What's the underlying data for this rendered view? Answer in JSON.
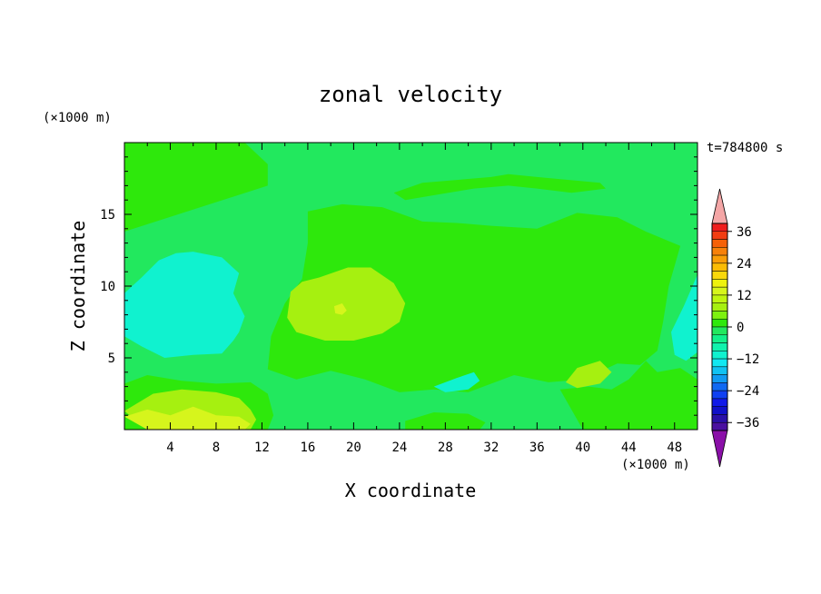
{
  "chart_data": {
    "type": "heatmap",
    "title": "zonal velocity",
    "xlabel": "X coordinate",
    "ylabel": "Z coordinate",
    "x_unit": "(×1000 m)",
    "z_unit": "(×1000 m)",
    "time_label": "t=784800 s",
    "xlim": [
      0,
      50
    ],
    "ylim": [
      0,
      20
    ],
    "x_ticks": [
      4,
      8,
      12,
      16,
      20,
      24,
      28,
      32,
      36,
      40,
      44,
      48
    ],
    "y_ticks": [
      5,
      10,
      15
    ],
    "colorbar": {
      "labels": [
        36,
        24,
        12,
        0,
        -12,
        -24,
        -36
      ],
      "levels": [
        {
          "min": 39,
          "color": "#f4a6a6"
        },
        {
          "min": 36,
          "max": 39,
          "color": "#ef1c1c"
        },
        {
          "min": 33,
          "max": 36,
          "color": "#f23d12"
        },
        {
          "min": 30,
          "max": 33,
          "color": "#f56108"
        },
        {
          "min": 27,
          "max": 30,
          "color": "#f7810a"
        },
        {
          "min": 24,
          "max": 27,
          "color": "#fa9e08"
        },
        {
          "min": 21,
          "max": 24,
          "color": "#fbbc05"
        },
        {
          "min": 18,
          "max": 21,
          "color": "#fad80a"
        },
        {
          "min": 15,
          "max": 18,
          "color": "#eef20e"
        },
        {
          "min": 12,
          "max": 15,
          "color": "#d6f51c"
        },
        {
          "min": 9,
          "max": 12,
          "color": "#bff510"
        },
        {
          "min": 6,
          "max": 9,
          "color": "#a6f010"
        },
        {
          "min": 3,
          "max": 6,
          "color": "#7df210"
        },
        {
          "min": 0,
          "max": 3,
          "color": "#2ee80c"
        },
        {
          "min": -3,
          "max": 0,
          "color": "#22e85e"
        },
        {
          "min": -6,
          "max": -3,
          "color": "#12f08a"
        },
        {
          "min": -9,
          "max": -6,
          "color": "#10f2ad"
        },
        {
          "min": -12,
          "max": -9,
          "color": "#10f2cf"
        },
        {
          "min": -15,
          "max": -12,
          "color": "#10e8f2"
        },
        {
          "min": -18,
          "max": -15,
          "color": "#10c2f2"
        },
        {
          "min": -21,
          "max": -18,
          "color": "#109af2"
        },
        {
          "min": -24,
          "max": -21,
          "color": "#1069f2"
        },
        {
          "min": -27,
          "max": -24,
          "color": "#1040f2"
        },
        {
          "min": -30,
          "max": -27,
          "color": "#1019e8"
        },
        {
          "min": -33,
          "max": -30,
          "color": "#1010c8"
        },
        {
          "min": -36,
          "max": -33,
          "color": "#2a10a8"
        },
        {
          "min": -39,
          "max": -36,
          "color": "#4a10a0"
        },
        {
          "max": -39,
          "color": "#8a10a8"
        }
      ]
    },
    "regions": [
      {
        "name": "positive 0-3 upper left",
        "value": 1.5,
        "x": [
          0,
          0,
          12.5,
          12.5,
          10.5,
          7,
          3.5,
          0
        ],
        "y": [
          20,
          13.8,
          17,
          18.5,
          20,
          20,
          20,
          20
        ]
      },
      {
        "name": "positive 0-3 main body",
        "value": 1.5,
        "x": [
          16,
          19,
          22.5,
          26,
          29,
          32,
          36,
          39.5,
          43,
          45.5,
          48.5,
          47.5,
          47,
          46.5,
          45,
          43,
          40,
          37,
          34,
          30,
          27,
          24,
          21,
          18,
          15,
          12.5,
          12.8,
          14,
          15.5,
          16,
          16
        ],
        "y": [
          15.2,
          15.7,
          15.5,
          14.5,
          14.4,
          14.2,
          14.0,
          15.1,
          14.8,
          13.8,
          12.8,
          10,
          7.5,
          5.5,
          4.5,
          4.6,
          3.5,
          3.3,
          3.8,
          2.6,
          2.8,
          2.6,
          3.5,
          4.1,
          3.5,
          4.2,
          6.5,
          8.8,
          10.5,
          13,
          15.2
        ]
      },
      {
        "name": "positive 0-3 upper band",
        "value": 1.5,
        "x": [
          23.5,
          26,
          29,
          32,
          33.5,
          36,
          41.5,
          42,
          39,
          36,
          33.5,
          30.5,
          27.5,
          24.5,
          23.5
        ],
        "y": [
          16.5,
          17.2,
          17.4,
          17.6,
          17.8,
          17.6,
          17.2,
          16.8,
          16.5,
          16.8,
          17.0,
          16.8,
          16.4,
          16.0,
          16.5
        ]
      },
      {
        "name": "positive 0-3 bottom left",
        "value": 1.5,
        "x": [
          0,
          2,
          5,
          8,
          11,
          12.5,
          13,
          12.5,
          11,
          8,
          5,
          2,
          0
        ],
        "y": [
          3.2,
          3.8,
          3.4,
          3.2,
          3.3,
          2.5,
          1.0,
          0,
          0,
          0,
          0,
          0,
          0
        ]
      },
      {
        "name": "positive 0-3 lower right",
        "value": 1.5,
        "x": [
          38,
          40.5,
          42.5,
          44,
          45.5,
          46.5,
          48.5,
          50,
          50,
          46,
          43,
          40,
          38
        ],
        "y": [
          2.8,
          3.0,
          2.8,
          3.5,
          4.8,
          4.0,
          4.3,
          3.5,
          0,
          0,
          0,
          0,
          2.8
        ]
      },
      {
        "name": "positive 0-3 bottom strip",
        "value": 1.5,
        "x": [
          24.5,
          27,
          30,
          31.5,
          31,
          28,
          24.5
        ],
        "y": [
          0.6,
          1.2,
          1.1,
          0.5,
          0,
          0,
          0
        ]
      },
      {
        "name": "positive 6-9 left blob",
        "value": 7.5,
        "x": [
          14.5,
          15.5,
          17,
          19.5,
          21.5,
          23.5,
          24.5,
          24,
          22.5,
          20,
          17.5,
          15,
          14.2,
          14.5
        ],
        "y": [
          9.6,
          10.3,
          10.6,
          11.3,
          11.3,
          10.2,
          8.8,
          7.5,
          6.7,
          6.2,
          6.2,
          6.8,
          7.8,
          9.6
        ]
      },
      {
        "name": "positive 6-9 right blob",
        "value": 7.5,
        "x": [
          38.5,
          39.5,
          41.5,
          42.5,
          41.5,
          39.5,
          38.5
        ],
        "y": [
          3.3,
          4.3,
          4.8,
          4.0,
          3.2,
          2.9,
          3.3
        ]
      },
      {
        "name": "positive 6-9 bottom left",
        "value": 7.5,
        "x": [
          0,
          2.5,
          5,
          8,
          10,
          11,
          11.5,
          11,
          8,
          5,
          2,
          0
        ],
        "y": [
          1.3,
          2.5,
          2.8,
          2.6,
          2.2,
          1.4,
          0.7,
          0,
          0,
          0,
          0,
          1.3
        ]
      },
      {
        "name": "positive 12-15 core",
        "value": 13.5,
        "x": [
          18.3,
          19.0,
          19.4,
          19.0,
          18.4,
          18.3
        ],
        "y": [
          8.6,
          8.8,
          8.3,
          8.0,
          8.1,
          8.6
        ]
      },
      {
        "name": "positive 12-15 bottom",
        "value": 13.5,
        "x": [
          0,
          2,
          4,
          6,
          8,
          10,
          11,
          10.5,
          8,
          5,
          2,
          0
        ],
        "y": [
          0.9,
          1.4,
          1.0,
          1.6,
          1.0,
          0.9,
          0.4,
          0,
          0,
          0,
          0,
          0.9
        ]
      },
      {
        "name": "negative -9 to -12 left",
        "value": -10.5,
        "x": [
          1.5,
          3,
          4.5,
          6,
          8.5,
          10,
          9.5,
          10.5,
          10,
          9.5,
          8.5,
          6,
          3.5,
          1.5,
          0,
          0,
          1.5
        ],
        "y": [
          10.6,
          11.8,
          12.3,
          12.4,
          12.0,
          10.9,
          9.5,
          7.9,
          6.8,
          6.2,
          5.3,
          5.2,
          5.0,
          5.8,
          6.5,
          9.5,
          10.6
        ]
      },
      {
        "name": "negative -9 to -12 right",
        "value": -10.5,
        "x": [
          47.7,
          48.8,
          50,
          50,
          49,
          48,
          47.7
        ],
        "y": [
          6.8,
          8.6,
          10.8,
          5.4,
          4.8,
          5.2,
          6.8
        ]
      },
      {
        "name": "negative -9 to -12 lower",
        "value": -10.5,
        "x": [
          27,
          29,
          30.5,
          31,
          30,
          28,
          27
        ],
        "y": [
          3.0,
          3.6,
          4.0,
          3.4,
          2.8,
          2.6,
          3.0
        ]
      }
    ]
  }
}
